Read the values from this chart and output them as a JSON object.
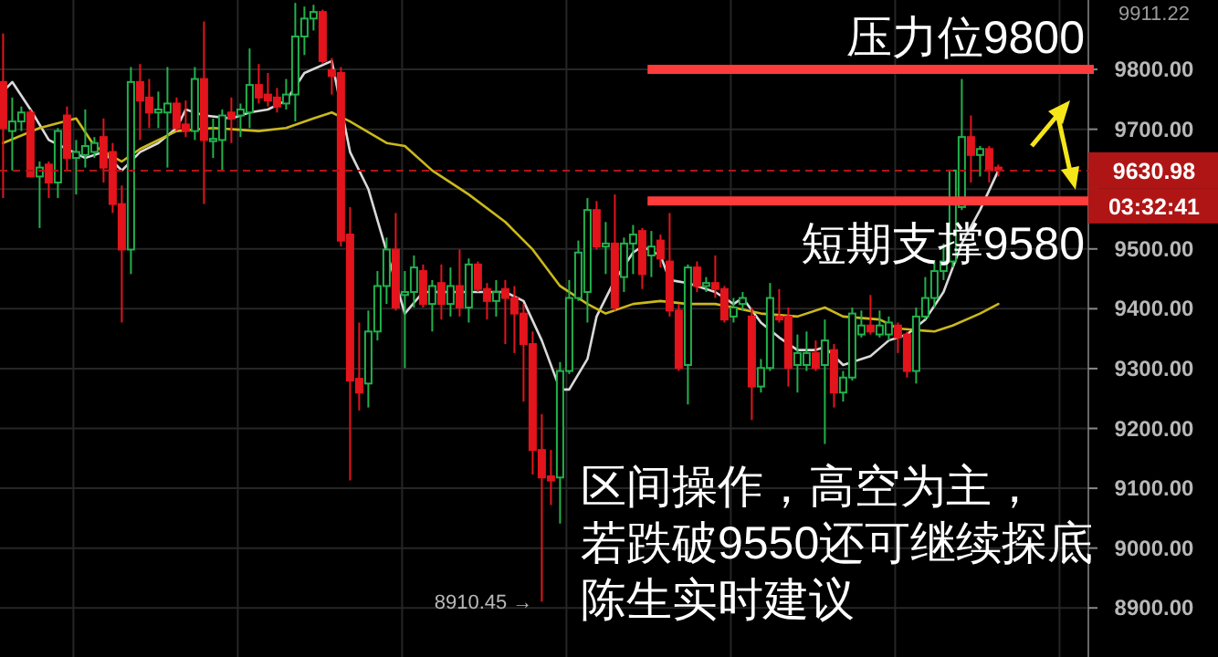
{
  "chart_data": {
    "type": "candlestick",
    "tick_labels": "y",
    "grid": true,
    "categories": [
      null,
      null,
      null,
      null,
      null,
      null,
      null,
      null,
      null,
      null,
      null,
      null,
      null,
      null,
      null,
      null,
      null,
      null,
      null,
      null,
      null,
      null,
      null,
      null,
      null,
      null,
      null,
      null,
      null,
      null,
      null,
      null,
      null,
      null,
      null,
      null,
      null,
      null,
      null,
      null,
      null,
      null,
      null,
      null,
      null,
      null,
      null,
      null,
      null,
      null,
      null,
      null,
      null,
      null,
      null,
      null,
      null,
      null,
      null,
      null,
      null,
      null,
      null,
      null,
      null,
      null,
      null,
      null,
      null,
      null,
      null,
      null,
      null,
      null,
      null,
      null,
      null,
      null,
      null,
      null,
      null,
      null,
      null,
      null,
      null,
      null,
      null,
      null,
      null,
      null,
      null,
      null,
      null,
      null,
      null,
      null,
      null,
      null,
      null,
      null,
      null,
      null,
      null,
      null,
      null,
      null,
      null,
      null,
      null,
      null
    ],
    "ohlc": [
      [
        9779,
        9860,
        9585,
        9702
      ],
      [
        9697,
        9753,
        9631,
        9713
      ],
      [
        9713,
        9738,
        9697,
        9728
      ],
      [
        9728,
        9733,
        9621,
        9621
      ],
      [
        9621,
        9646,
        9535,
        9636
      ],
      [
        9641,
        9646,
        9585,
        9611
      ],
      [
        9611,
        9702,
        9585,
        9697
      ],
      [
        9723,
        9738,
        9631,
        9652
      ],
      [
        9652,
        9682,
        9591,
        9662
      ],
      [
        9657,
        9733,
        9636,
        9672
      ],
      [
        9662,
        9687,
        9652,
        9677
      ],
      [
        9687,
        9718,
        9611,
        9636
      ],
      [
        9662,
        9677,
        9560,
        9575
      ],
      [
        9575,
        9606,
        9377,
        9499
      ],
      [
        9499,
        9804,
        9458,
        9779
      ],
      [
        9779,
        9809,
        9682,
        9748
      ],
      [
        9753,
        9784,
        9702,
        9728
      ],
      [
        9728,
        9763,
        9702,
        9733
      ],
      [
        9728,
        9804,
        9636,
        9743
      ],
      [
        9743,
        9753,
        9697,
        9702
      ],
      [
        9708,
        9748,
        9687,
        9697
      ],
      [
        9697,
        9804,
        9682,
        9784
      ],
      [
        9784,
        9880,
        9575,
        9682
      ],
      [
        9680,
        9718,
        9652,
        9684
      ],
      [
        9682,
        9733,
        9631,
        9723
      ],
      [
        9728,
        9753,
        9677,
        9718
      ],
      [
        9723,
        9743,
        9687,
        9733
      ],
      [
        9728,
        9835,
        9702,
        9774
      ],
      [
        9774,
        9809,
        9743,
        9753
      ],
      [
        9758,
        9794,
        9738,
        9748
      ],
      [
        9753,
        9769,
        9728,
        9738
      ],
      [
        9743,
        9784,
        9733,
        9758
      ],
      [
        9758,
        9911.22,
        9713,
        9855
      ],
      [
        9855,
        9905,
        9824,
        9885
      ],
      [
        9885,
        9908,
        9865,
        9896
      ],
      [
        9896,
        9900,
        9809,
        9814
      ],
      [
        9799,
        9819,
        9758,
        9789
      ],
      [
        9794,
        9804,
        9504,
        9514
      ],
      [
        9524,
        9570,
        9113,
        9280
      ],
      [
        9283,
        9377,
        9230,
        9260
      ],
      [
        9275,
        9397,
        9235,
        9362
      ],
      [
        9362,
        9463,
        9347,
        9438
      ],
      [
        9438,
        9519,
        9408,
        9499
      ],
      [
        9499,
        9560,
        9397,
        9402
      ],
      [
        9423,
        9463,
        9301,
        9428
      ],
      [
        9428,
        9489,
        9402,
        9469
      ],
      [
        9463,
        9474,
        9402,
        9408
      ],
      [
        9408,
        9448,
        9362,
        9438
      ],
      [
        9443,
        9474,
        9382,
        9408
      ],
      [
        9408,
        9469,
        9387,
        9438
      ],
      [
        9438,
        9499,
        9387,
        9402
      ],
      [
        9402,
        9484,
        9377,
        9474
      ],
      [
        9474,
        9479,
        9428,
        9433
      ],
      [
        9433,
        9443,
        9382,
        9413
      ],
      [
        9413,
        9448,
        9387,
        9428
      ],
      [
        9433,
        9448,
        9341,
        9418
      ],
      [
        9418,
        9438,
        9326,
        9392
      ],
      [
        9392,
        9408,
        9245,
        9341
      ],
      [
        9341,
        9362,
        9123,
        9164
      ],
      [
        9164,
        9224,
        8910.45,
        9118
      ],
      [
        9120,
        9164,
        9072,
        9113
      ],
      [
        9118,
        9311,
        9041,
        9296
      ],
      [
        9296,
        9448,
        9291,
        9418
      ],
      [
        9418,
        9514,
        9413,
        9494
      ],
      [
        9428,
        9585,
        9377,
        9565
      ],
      [
        9565,
        9580,
        9499,
        9504
      ],
      [
        9504,
        9545,
        9458,
        9509
      ],
      [
        9509,
        9591,
        9397,
        9402
      ],
      [
        9453,
        9519,
        9428,
        9509
      ],
      [
        9509,
        9540,
        9458,
        9524
      ],
      [
        9530,
        9535,
        9433,
        9458
      ],
      [
        9489,
        9530,
        9453,
        9504
      ],
      [
        9514,
        9524,
        9469,
        9484
      ],
      [
        9479,
        9560,
        9387,
        9397
      ],
      [
        9397,
        9408,
        9296,
        9301
      ],
      [
        9306,
        9474,
        9240,
        9469
      ],
      [
        9469,
        9479,
        9428,
        9438
      ],
      [
        9438,
        9453,
        9428,
        9443
      ],
      [
        9443,
        9489,
        9418,
        9433
      ],
      [
        9433,
        9438,
        9377,
        9382
      ],
      [
        9387,
        9418,
        9377,
        9402
      ],
      [
        9408,
        9428,
        9397,
        9418
      ],
      [
        9387,
        9402,
        9214,
        9270
      ],
      [
        9270,
        9316,
        9260,
        9301
      ],
      [
        9301,
        9443,
        9296,
        9418
      ],
      [
        9387,
        9433,
        9377,
        9382
      ],
      [
        9387,
        9402,
        9270,
        9301
      ],
      [
        9306,
        9357,
        9260,
        9326
      ],
      [
        9306,
        9362,
        9296,
        9326
      ],
      [
        9326,
        9347,
        9296,
        9301
      ],
      [
        9306,
        9382,
        9174,
        9347
      ],
      [
        9331,
        9341,
        9235,
        9260
      ],
      [
        9260,
        9296,
        9245,
        9285
      ],
      [
        9285,
        9402,
        9280,
        9392
      ],
      [
        9357,
        9397,
        9352,
        9372
      ],
      [
        9372,
        9423,
        9357,
        9362
      ],
      [
        9357,
        9397,
        9352,
        9372
      ],
      [
        9357,
        9387,
        9347,
        9377
      ],
      [
        9372,
        9377,
        9326,
        9352
      ],
      [
        9357,
        9362,
        9285,
        9296
      ],
      [
        9296,
        9402,
        9275,
        9387
      ],
      [
        9387,
        9453,
        9382,
        9418
      ],
      [
        9418,
        9479,
        9402,
        9463
      ],
      [
        9463,
        9509,
        9448,
        9479
      ],
      [
        9479,
        9631,
        9469,
        9631
      ],
      [
        9570,
        9784,
        9565,
        9687
      ],
      [
        9687,
        9723,
        9611,
        9657
      ],
      [
        9657,
        9672,
        9621,
        9667
      ],
      [
        9667,
        9672,
        9611,
        9631
      ],
      [
        9636,
        9641,
        9621,
        9630.98
      ]
    ],
    "series": [
      {
        "type": "line",
        "color": "#d9d9d9",
        "values": [
          9763,
          9779,
          null,
          9733,
          null,
          9682,
          null,
          9667,
          null,
          9652,
          null,
          9662,
          null,
          9631,
          null,
          9662,
          null,
          9677,
          null,
          9702,
          9733,
          null,
          9723,
          null,
          null,
          9718,
          null,
          9728,
          null,
          9733,
          null,
          9748,
          null,
          9794,
          null,
          null,
          9814,
          null,
          9662,
          null,
          9600,
          null,
          null,
          null,
          9392,
          null,
          9428,
          null,
          null,
          9428,
          null,
          null,
          null,
          9428,
          null,
          9428,
          null,
          9413,
          null,
          9347,
          null,
          9265,
          9265,
          null,
          9316,
          9387,
          null,
          9448,
          null,
          9494,
          9504,
          null,
          9489,
          9448,
          null,
          9443,
          9438,
          null,
          9428,
          null,
          9408,
          9418,
          null,
          9377,
          null,
          9352,
          null,
          9331,
          null,
          9331,
          9336,
          null,
          9306,
          null,
          null,
          9321,
          null,
          9347,
          null,
          9357,
          null,
          9382,
          null,
          9428,
          null,
          9509,
          null,
          9565,
          null,
          9631
        ]
      },
      {
        "type": "line",
        "color": "#cbb81c",
        "values": [
          9677,
          null,
          null,
          null,
          9702,
          null,
          null,
          null,
          9718,
          null,
          9672,
          null,
          null,
          9646,
          null,
          9667,
          null,
          null,
          null,
          9697,
          null,
          null,
          null,
          9702,
          null,
          null,
          null,
          null,
          9697,
          null,
          null,
          9702,
          null,
          null,
          9718,
          null,
          9728,
          null,
          9713,
          null,
          null,
          null,
          9677,
          null,
          9672,
          null,
          null,
          9631,
          null,
          null,
          null,
          9591,
          null,
          null,
          null,
          9545,
          null,
          null,
          9499,
          null,
          null,
          9438,
          null,
          null,
          9408,
          null,
          9392,
          null,
          null,
          9408,
          null,
          null,
          9413,
          null,
          null,
          9408,
          null,
          null,
          9408,
          null,
          9402,
          null,
          null,
          9392,
          null,
          null,
          null,
          9387,
          null,
          null,
          9402,
          null,
          9387,
          null,
          null,
          null,
          9382,
          null,
          9367,
          null,
          null,
          null,
          9362,
          null,
          9372,
          null,
          null,
          9392,
          null,
          9408
        ]
      }
    ],
    "ylim": [
      8818,
      9916
    ],
    "yticks": [
      {
        "value": 8900,
        "label": "8900.00"
      },
      {
        "value": 9000,
        "label": "9000.00"
      },
      {
        "value": 9100,
        "label": "9100.00"
      },
      {
        "value": 9200,
        "label": "9200.00"
      },
      {
        "value": 9300,
        "label": "9300.00"
      },
      {
        "value": 9400,
        "label": "9400.00"
      },
      {
        "value": 9500,
        "label": "9500.00"
      },
      {
        "value": 9600,
        "label": null
      },
      {
        "value": 9700,
        "label": "9700.00"
      },
      {
        "value": 9800,
        "label": "9800.00"
      }
    ],
    "ref_lines": [
      {
        "axis": "y",
        "value": 9800,
        "label": "压力位9800",
        "color": "#ff3b3b"
      },
      {
        "axis": "y",
        "value": 9580,
        "label": "短期支撑9580",
        "color": "#ff3b3b"
      },
      {
        "axis": "y",
        "value": 9630.98,
        "label": "9630.98",
        "color": "#b01515",
        "line_style": "dashed"
      }
    ],
    "annotations": [
      "9911.22",
      "8910.45 →",
      "03:32:41",
      "区间操作，高空为主，",
      "若跌破9550还可继续探底",
      "陈生实时建议"
    ]
  }
}
